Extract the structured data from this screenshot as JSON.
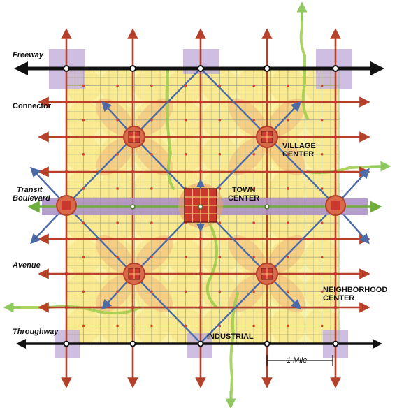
{
  "labels": {
    "freeway": "Freeway",
    "connector": "Connector",
    "transit_line1": "Transit",
    "transit_line2": "Boulevard",
    "avenue": "Avenue",
    "throughway": "Throughway",
    "village_center_line1": "VILLAGE",
    "village_center_line2": "CENTER",
    "town_center_line1": "TOWN",
    "town_center_line2": "CENTER",
    "neighborhood_center_line1": "NEIGHBORHOOD",
    "neighborhood_center_line2": "CENTER",
    "industrial": "INDUSTRIAL",
    "scale": "1 Mile"
  },
  "colors": {
    "yellow_fill": "#fbf2a6",
    "circle_fill": "#f7e17f",
    "orange_zone": "#f3c07e",
    "grid_line": "#a8b08a",
    "road_red": "#b5412a",
    "highway_black": "#111111",
    "transit_purple": "#a88cc8",
    "transit_green": "#6fae3d",
    "lavender_block": "#c6b3dc",
    "green_corridor": "#9ccc4a",
    "diagonal_blue": "#4a6aa8",
    "town_center_red": "#c8382c"
  }
}
